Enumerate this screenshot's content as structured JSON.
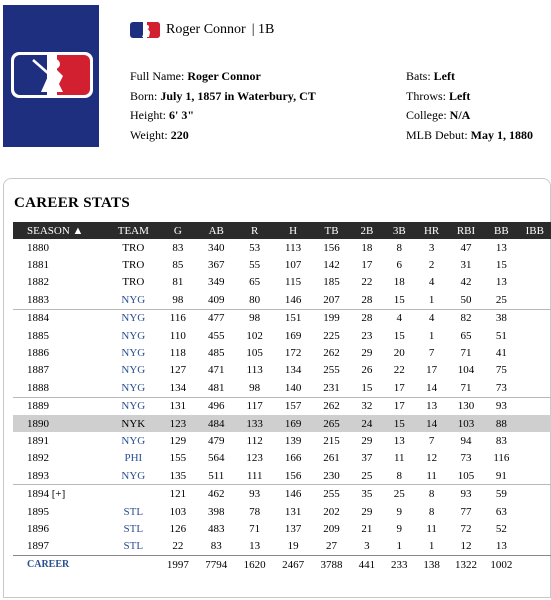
{
  "player": {
    "name": "Roger Connor",
    "position": "| 1B",
    "full_name_label": "Full Name:",
    "full_name": "Roger Connor",
    "born_label": "Born:",
    "born": "July 1, 1857 in Waterbury, CT",
    "height_label": "Height:",
    "height": "6' 3\"",
    "weight_label": "Weight:",
    "weight": "220",
    "bats_label": "Bats:",
    "bats": "Left",
    "throws_label": "Throws:",
    "throws": "Left",
    "college_label": "College:",
    "college": "N/A",
    "debut_label": "MLB Debut:",
    "debut": "May 1, 1880"
  },
  "stats": {
    "title": "CAREER STATS",
    "headers": [
      "SEASON ▲",
      "TEAM",
      "G",
      "AB",
      "R",
      "H",
      "TB",
      "2B",
      "3B",
      "HR",
      "RBI",
      "BB",
      "IBB"
    ],
    "rows": [
      [
        "1880",
        "TRO",
        "83",
        "340",
        "53",
        "113",
        "156",
        "18",
        "8",
        "3",
        "47",
        "13",
        ""
      ],
      [
        "1881",
        "TRO",
        "85",
        "367",
        "55",
        "107",
        "142",
        "17",
        "6",
        "2",
        "31",
        "15",
        ""
      ],
      [
        "1882",
        "TRO",
        "81",
        "349",
        "65",
        "115",
        "185",
        "22",
        "18",
        "4",
        "42",
        "13",
        ""
      ],
      [
        "1883",
        "NYG",
        "98",
        "409",
        "80",
        "146",
        "207",
        "28",
        "15",
        "1",
        "50",
        "25",
        ""
      ],
      [
        "1884",
        "NYG",
        "116",
        "477",
        "98",
        "151",
        "199",
        "28",
        "4",
        "4",
        "82",
        "38",
        ""
      ],
      [
        "1885",
        "NYG",
        "110",
        "455",
        "102",
        "169",
        "225",
        "23",
        "15",
        "1",
        "65",
        "51",
        ""
      ],
      [
        "1886",
        "NYG",
        "118",
        "485",
        "105",
        "172",
        "262",
        "29",
        "20",
        "7",
        "71",
        "41",
        ""
      ],
      [
        "1887",
        "NYG",
        "127",
        "471",
        "113",
        "134",
        "255",
        "26",
        "22",
        "17",
        "104",
        "75",
        ""
      ],
      [
        "1888",
        "NYG",
        "134",
        "481",
        "98",
        "140",
        "231",
        "15",
        "17",
        "14",
        "71",
        "73",
        ""
      ],
      [
        "1889",
        "NYG",
        "131",
        "496",
        "117",
        "157",
        "262",
        "32",
        "17",
        "13",
        "130",
        "93",
        ""
      ],
      [
        "1890",
        "NYK",
        "123",
        "484",
        "133",
        "169",
        "265",
        "24",
        "15",
        "14",
        "103",
        "88",
        ""
      ],
      [
        "1891",
        "NYG",
        "129",
        "479",
        "112",
        "139",
        "215",
        "29",
        "13",
        "7",
        "94",
        "83",
        ""
      ],
      [
        "1892",
        "PHI",
        "155",
        "564",
        "123",
        "166",
        "261",
        "37",
        "11",
        "12",
        "73",
        "116",
        ""
      ],
      [
        "1893",
        "NYG",
        "135",
        "511",
        "111",
        "156",
        "230",
        "25",
        "8",
        "11",
        "105",
        "91",
        ""
      ],
      [
        "1894 [+]",
        "",
        "121",
        "462",
        "93",
        "146",
        "255",
        "35",
        "25",
        "8",
        "93",
        "59",
        ""
      ],
      [
        "1895",
        "STL",
        "103",
        "398",
        "78",
        "131",
        "202",
        "29",
        "9",
        "8",
        "77",
        "63",
        ""
      ],
      [
        "1896",
        "STL",
        "126",
        "483",
        "71",
        "137",
        "209",
        "21",
        "9",
        "11",
        "72",
        "52",
        ""
      ],
      [
        "1897",
        "STL",
        "22",
        "83",
        "13",
        "19",
        "27",
        "3",
        "1",
        "1",
        "12",
        "13",
        ""
      ]
    ],
    "totals": [
      "CAREER",
      "",
      "1997",
      "7794",
      "1620",
      "2467",
      "3788",
      "441",
      "233",
      "138",
      "1322",
      "1002",
      ""
    ]
  },
  "colors": {
    "logo_bg": "#1f2f80",
    "link": "#2a4f8f",
    "header_bg": "#2b2b2b",
    "highlight": "#cfcfcf"
  }
}
